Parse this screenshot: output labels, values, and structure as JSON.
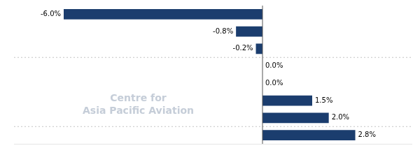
{
  "chart_data": {
    "type": "bar",
    "orientation": "horizontal",
    "categories": [
      null,
      null,
      null,
      null,
      null,
      null,
      null,
      null
    ],
    "values": [
      -6.0,
      -0.8,
      -0.2,
      0.0,
      0.0,
      1.5,
      2.0,
      2.8
    ],
    "value_labels": [
      "-6.0%",
      "-0.8%",
      "-0.2%",
      "0.0%",
      "0.0%",
      "1.5%",
      "2.0%",
      "2.8%"
    ],
    "data_labels": true,
    "color": "#1b3d6e",
    "xlim": [
      -7.5,
      4.5
    ],
    "tick_labels": false,
    "grid": false,
    "annotations": [
      "Centre for",
      "Asia Pacific Aviation"
    ]
  }
}
